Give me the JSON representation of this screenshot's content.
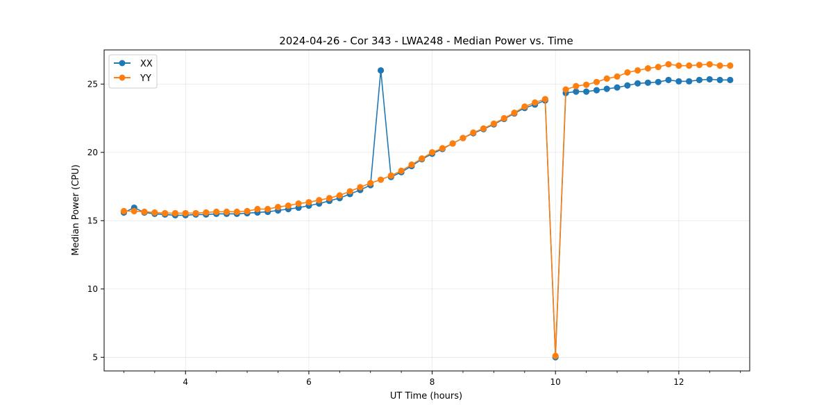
{
  "chart_data": {
    "type": "line",
    "title": "2024-04-26 - Cor 343 - LWA248 - Median Power vs. Time",
    "xlabel": "UT Time (hours)",
    "ylabel": "Median Power (CPU)",
    "xlim": [
      2.68,
      13.15
    ],
    "ylim": [
      4.0,
      27.5
    ],
    "xticks": [
      4,
      6,
      8,
      10,
      12
    ],
    "yticks": [
      5,
      10,
      15,
      20,
      25
    ],
    "grid": true,
    "legend_position": "top-left",
    "x": [
      3.0,
      3.167,
      3.333,
      3.5,
      3.667,
      3.833,
      4.0,
      4.167,
      4.333,
      4.5,
      4.667,
      4.833,
      5.0,
      5.167,
      5.333,
      5.5,
      5.667,
      5.833,
      6.0,
      6.167,
      6.333,
      6.5,
      6.667,
      6.833,
      7.0,
      7.167,
      7.333,
      7.5,
      7.667,
      7.833,
      8.0,
      8.167,
      8.333,
      8.5,
      8.667,
      8.833,
      9.0,
      9.167,
      9.333,
      9.5,
      9.667,
      9.833,
      10.0,
      10.167,
      10.333,
      10.5,
      10.667,
      10.833,
      11.0,
      11.167,
      11.333,
      11.5,
      11.667,
      11.833,
      12.0,
      12.167,
      12.333,
      12.5,
      12.667,
      12.833
    ],
    "series": [
      {
        "name": "XX",
        "color": "#1f77b4",
        "values": [
          15.6,
          15.95,
          15.6,
          15.5,
          15.45,
          15.4,
          15.4,
          15.45,
          15.45,
          15.5,
          15.5,
          15.5,
          15.55,
          15.6,
          15.65,
          15.75,
          15.85,
          15.95,
          16.1,
          16.25,
          16.45,
          16.65,
          16.95,
          17.25,
          17.6,
          26.0,
          18.2,
          18.55,
          19.0,
          19.5,
          19.9,
          20.25,
          20.65,
          21.05,
          21.4,
          21.7,
          22.05,
          22.45,
          22.85,
          23.25,
          23.5,
          23.8,
          5.0,
          24.35,
          24.45,
          24.45,
          24.55,
          24.65,
          24.75,
          24.9,
          25.05,
          25.1,
          25.15,
          25.3,
          25.2,
          25.2,
          25.3,
          25.35,
          25.3,
          25.3
        ]
      },
      {
        "name": "YY",
        "color": "#ff7f0e",
        "values": [
          15.7,
          15.7,
          15.65,
          15.6,
          15.55,
          15.55,
          15.55,
          15.55,
          15.6,
          15.65,
          15.65,
          15.65,
          15.7,
          15.85,
          15.85,
          16.0,
          16.1,
          16.25,
          16.35,
          16.5,
          16.65,
          16.85,
          17.15,
          17.45,
          17.75,
          18.0,
          18.3,
          18.65,
          19.1,
          19.55,
          20.0,
          20.3,
          20.65,
          21.05,
          21.45,
          21.75,
          22.1,
          22.5,
          22.9,
          23.35,
          23.65,
          23.9,
          5.1,
          24.6,
          24.85,
          24.95,
          25.15,
          25.4,
          25.55,
          25.85,
          26.0,
          26.15,
          26.25,
          26.45,
          26.35,
          26.35,
          26.4,
          26.45,
          26.35,
          26.35
        ]
      }
    ]
  }
}
